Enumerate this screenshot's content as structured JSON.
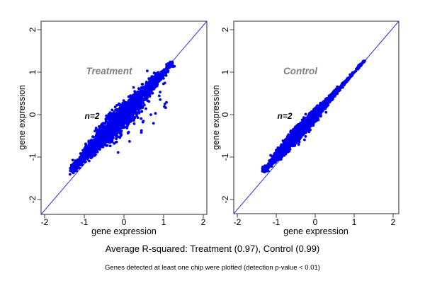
{
  "figure": {
    "background": "#ffffff",
    "colors": {
      "points": "#0000ee",
      "line": "#2f2fff",
      "frame": "#4a4a4a",
      "panel_label": "#7f7f7f",
      "text": "#000000",
      "background": "#ffffff"
    },
    "captions": {
      "primary": "Average R-squared: Treatment (0.97), Control (0.99)",
      "secondary": "Genes detected at least one chip were plotted (detection p-value < 0.01)"
    }
  },
  "chart_data": [
    {
      "type": "scatter",
      "panel_label": "Treatment",
      "sample_annotation": "n=2",
      "avg_r_squared": 0.97,
      "xlabel": "gene expression",
      "ylabel": "gene expression",
      "xlim": [
        -2.1,
        2.1
      ],
      "ylim": [
        -2.35,
        2.2
      ],
      "xticks": [
        -2,
        -1,
        0,
        1,
        2
      ],
      "yticks": [
        2,
        1,
        0,
        -1,
        -2
      ],
      "xtick_labels": [
        "-2",
        "-1",
        "0",
        "1",
        "2"
      ],
      "ytick_labels": [
        "2",
        "1",
        "0",
        "-1",
        "-2"
      ],
      "grid": false,
      "identity_line": true,
      "point_radius": 1.9,
      "cloud": {
        "n": 2600,
        "seed": 42,
        "t_mean": -0.2,
        "t_sd": 0.6,
        "t_min": -1.27,
        "t_max": 1.17,
        "noise_base": 0.03,
        "noise_peak": 0.085,
        "noise_center": -0.1,
        "noise_width": 0.55
      },
      "outliers": {
        "seed": 7,
        "t_min": -0.55,
        "t_max": 0.9,
        "below": {
          "n": 48,
          "d_min": 0.12,
          "d_max": 0.85
        },
        "above": {
          "n": 14,
          "d_min": 0.1,
          "d_max": 0.32
        }
      }
    },
    {
      "type": "scatter",
      "panel_label": "Control",
      "sample_annotation": "n=2",
      "avg_r_squared": 0.99,
      "xlabel": "gene expression",
      "ylabel": "gene expression",
      "xlim": [
        -2.1,
        2.1
      ],
      "ylim": [
        -2.35,
        2.2
      ],
      "xticks": [
        -2,
        -1,
        0,
        1,
        2
      ],
      "yticks": [
        2,
        1,
        0,
        -1,
        -2
      ],
      "xtick_labels": [
        "-2",
        "-1",
        "0",
        "1",
        "2"
      ],
      "ytick_labels": [
        "2",
        "1",
        "0",
        "-1",
        "-2"
      ],
      "grid": false,
      "identity_line": true,
      "point_radius": 1.9,
      "cloud": {
        "n": 2600,
        "seed": 1234,
        "t_mean": -0.25,
        "t_sd": 0.55,
        "t_min": -1.3,
        "t_max": 1.25,
        "noise_base": 0.012,
        "noise_peak": 0.055,
        "noise_center": -0.45,
        "noise_width": 0.5
      },
      "outliers": {
        "seed": 21,
        "t_min": -0.9,
        "t_max": 0.2,
        "below": {
          "n": 5,
          "d_min": 0.08,
          "d_max": 0.35
        },
        "above": {
          "n": 3,
          "d_min": 0.08,
          "d_max": 0.2
        }
      }
    }
  ]
}
